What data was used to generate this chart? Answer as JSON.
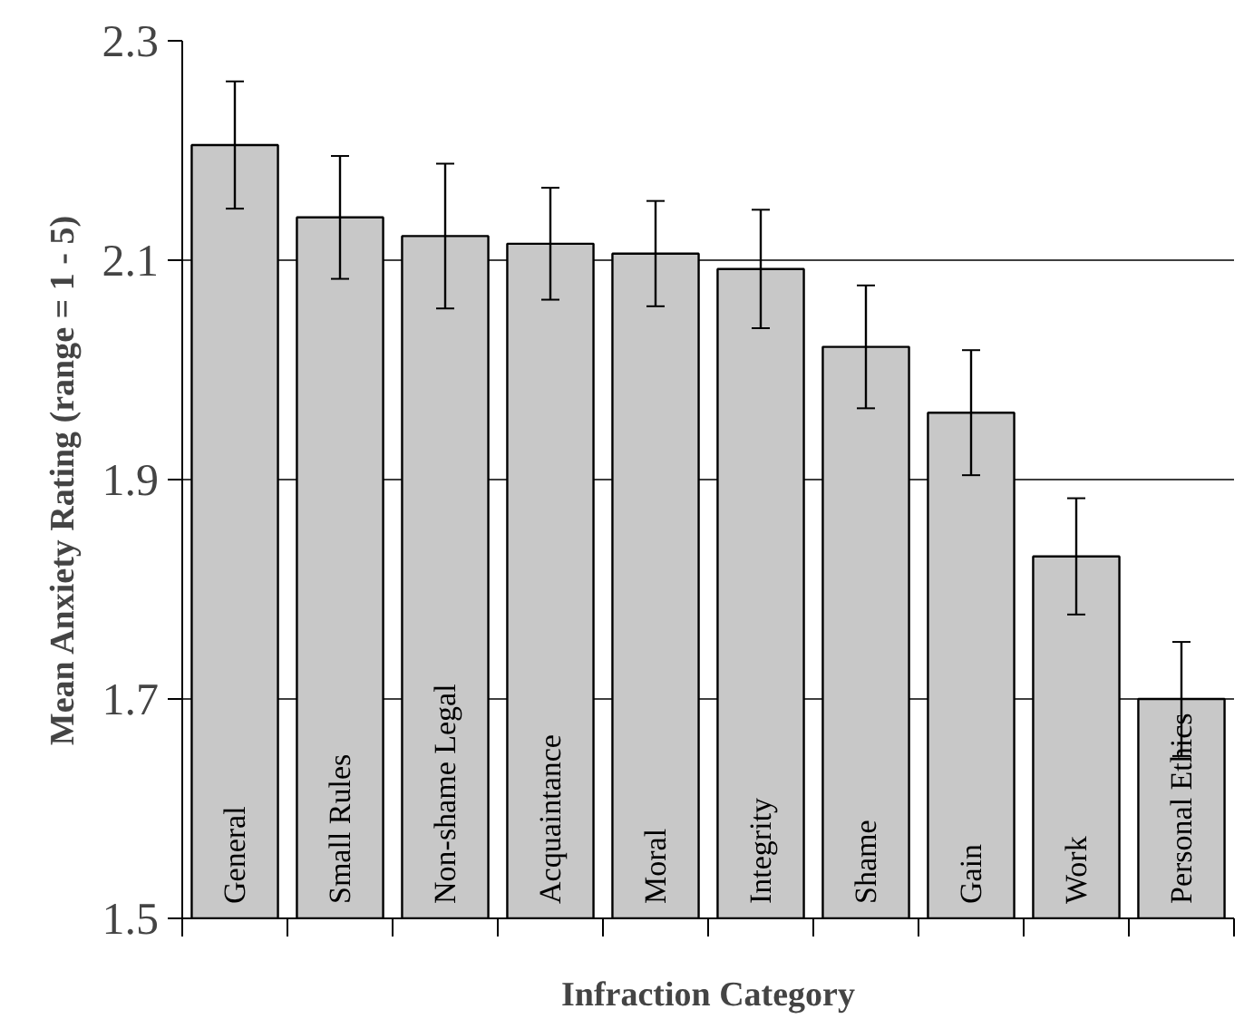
{
  "chart_data": {
    "type": "bar",
    "xlabel": "Infraction Category",
    "ylabel": "Mean Anxiety Rating (range = 1 - 5)",
    "categories": [
      "General",
      "Small Rules",
      "Non-shame Legal",
      "Acquaintance",
      "Moral",
      "Integrity",
      "Shame",
      "Gain",
      "Work",
      "Personal Ethics"
    ],
    "values": [
      2.205,
      2.139,
      2.122,
      2.115,
      2.106,
      2.092,
      2.021,
      1.961,
      1.83,
      1.7
    ],
    "errors": [
      0.058,
      0.056,
      0.066,
      0.051,
      0.048,
      0.054,
      0.056,
      0.057,
      0.053,
      0.052
    ],
    "color": "#c8c8c8",
    "ylim": [
      1.5,
      2.3
    ],
    "yticks": [
      1.5,
      1.7,
      1.9,
      2.1,
      2.3
    ],
    "grid": "y"
  }
}
